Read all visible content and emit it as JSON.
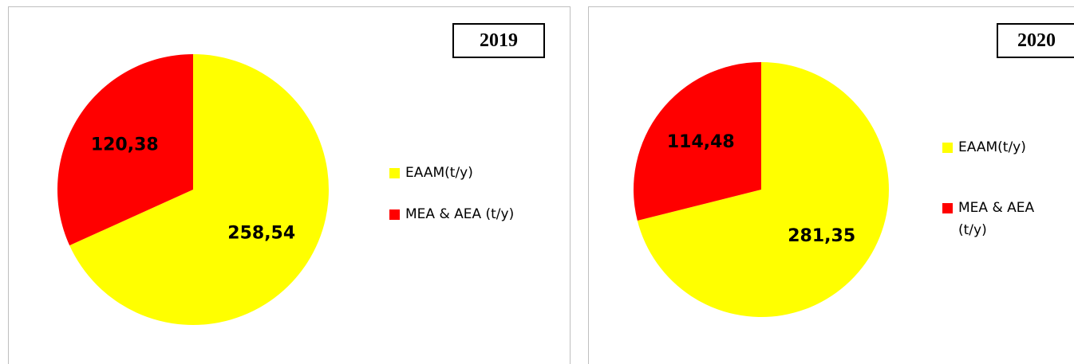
{
  "chart_data": [
    {
      "type": "pie",
      "title": "2019",
      "categories": [
        "EAAM(t/y)",
        "MEA & AEA (t/y)"
      ],
      "values": [
        258.54,
        120.38
      ],
      "value_labels": [
        "258,54",
        "120,38"
      ],
      "colors": [
        "#ffff00",
        "#ff0000"
      ]
    },
    {
      "type": "pie",
      "title": "2020",
      "categories": [
        "EAAM(t/y)",
        "MEA & AEA (t/y)"
      ],
      "values": [
        281.35,
        114.48
      ],
      "value_labels": [
        "281,35",
        "114,48"
      ],
      "colors": [
        "#ffff00",
        "#ff0000"
      ]
    }
  ]
}
